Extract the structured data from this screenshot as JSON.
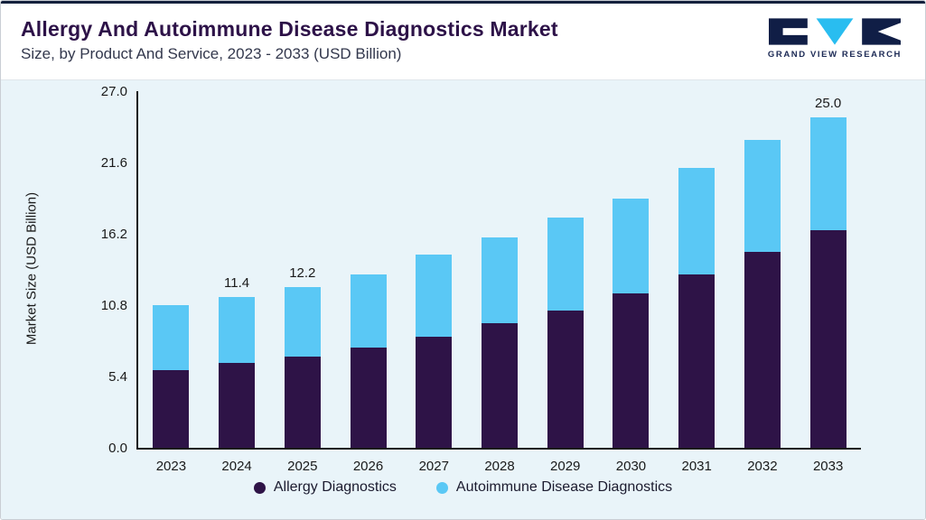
{
  "header": {
    "title": "Allergy And Autoimmune Disease Diagnostics Market",
    "subtitle": "Size, by Product And Service, 2023 - 2033 (USD Billion)",
    "logo_text": "GRAND VIEW RESEARCH"
  },
  "colors": {
    "allergy": "#2e1347",
    "autoimmune": "#5ac8f5",
    "chart_background": "#e9f4f9",
    "accent_bar": "#14213d",
    "title": "#2d1248"
  },
  "chart_data": {
    "type": "bar",
    "stacked": true,
    "title": "Allergy And Autoimmune Disease Diagnostics Market Size, by Product And Service, 2023 - 2033 (USD Billion)",
    "xlabel": "",
    "ylabel": "Market Size (USD Billion)",
    "ylim": [
      0,
      27
    ],
    "ytick_labels": [
      "0.0",
      "5.4",
      "10.8",
      "16.2",
      "21.6",
      "27.0"
    ],
    "grid": false,
    "legend_position": "bottom",
    "categories": [
      "2023",
      "2024",
      "2025",
      "2026",
      "2027",
      "2028",
      "2029",
      "2030",
      "2031",
      "2032",
      "2033"
    ],
    "series": [
      {
        "name": "Allergy Diagnostics",
        "color": "#2e1347",
        "values": [
          5.9,
          6.4,
          6.9,
          7.6,
          8.4,
          9.4,
          10.4,
          11.7,
          13.1,
          14.8,
          16.5
        ]
      },
      {
        "name": "Autoimmune Disease Diagnostics",
        "color": "#5ac8f5",
        "values": [
          4.9,
          5.0,
          5.3,
          5.5,
          6.2,
          6.5,
          7.0,
          7.2,
          8.1,
          8.5,
          8.5
        ]
      }
    ],
    "totals": [
      10.8,
      11.4,
      12.2,
      13.1,
      14.6,
      15.9,
      17.4,
      18.9,
      21.2,
      23.3,
      25.0
    ],
    "total_labels": {
      "2024": "11.4",
      "2025": "12.2",
      "2033": "25.0"
    }
  }
}
